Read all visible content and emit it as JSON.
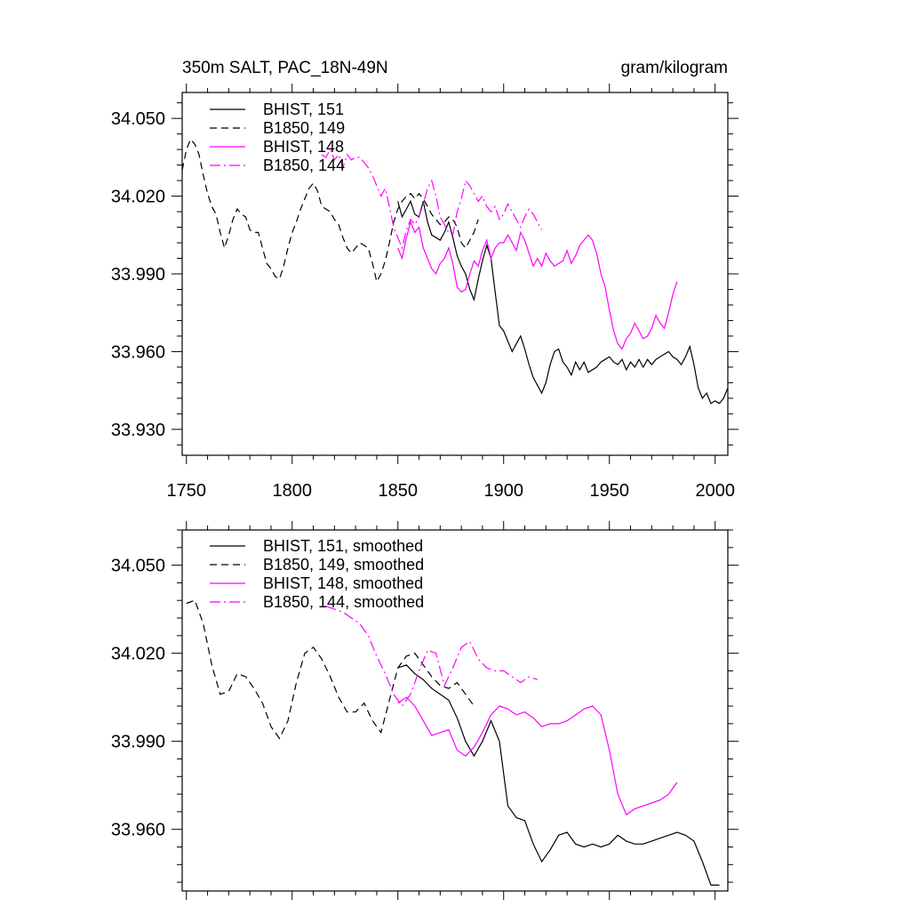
{
  "chart_data": [
    {
      "type": "line",
      "title_left": "350m SALT, PAC_18N-49N",
      "title_right": "gram/kilogram",
      "xlim": [
        1748,
        2006
      ],
      "ylim": [
        33.92,
        34.06
      ],
      "x_ticks": [
        1750,
        1800,
        1850,
        1900,
        1950,
        2000
      ],
      "x_tick_labels": [
        "1750",
        "1800",
        "1850",
        "1900",
        "1950",
        "2000"
      ],
      "y_ticks": [
        33.93,
        33.96,
        33.99,
        34.02,
        34.05
      ],
      "y_tick_labels": [
        "33.930",
        "33.960",
        "33.990",
        "34.020",
        "34.050"
      ],
      "series": [
        {
          "name": "BHIST, 151",
          "color": "#000000",
          "dash": "solid",
          "x": [
            1850,
            1852,
            1854,
            1856,
            1858,
            1860,
            1862,
            1864,
            1866,
            1868,
            1870,
            1872,
            1874,
            1876,
            1878,
            1880,
            1882,
            1884,
            1886,
            1888,
            1890,
            1892,
            1894,
            1896,
            1898,
            1900,
            1902,
            1904,
            1906,
            1908,
            1910,
            1912,
            1914,
            1916,
            1918,
            1920,
            1922,
            1924,
            1926,
            1928,
            1930,
            1932,
            1934,
            1936,
            1938,
            1940,
            1942,
            1944,
            1946,
            1948,
            1950,
            1952,
            1954,
            1956,
            1958,
            1960,
            1962,
            1964,
            1966,
            1968,
            1970,
            1972,
            1974,
            1976,
            1978,
            1980,
            1982,
            1984,
            1986,
            1988,
            1990,
            1992,
            1994,
            1996,
            1998,
            2000,
            2002,
            2004,
            2006
          ],
          "y": [
            34.018,
            34.012,
            34.015,
            34.018,
            34.013,
            34.012,
            34.018,
            34.01,
            34.005,
            34.004,
            34.003,
            34.006,
            34.01,
            34.004,
            33.997,
            33.993,
            33.99,
            33.984,
            33.98,
            33.988,
            33.995,
            34.001,
            33.996,
            33.983,
            33.97,
            33.968,
            33.964,
            33.96,
            33.963,
            33.966,
            33.961,
            33.955,
            33.95,
            33.947,
            33.944,
            33.948,
            33.955,
            33.96,
            33.961,
            33.956,
            33.954,
            33.951,
            33.956,
            33.953,
            33.956,
            33.952,
            33.953,
            33.954,
            33.956,
            33.957,
            33.958,
            33.956,
            33.955,
            33.957,
            33.953,
            33.956,
            33.954,
            33.957,
            33.954,
            33.957,
            33.955,
            33.957,
            33.958,
            33.959,
            33.96,
            33.958,
            33.957,
            33.955,
            33.958,
            33.962,
            33.955,
            33.946,
            33.942,
            33.944,
            33.94,
            33.941,
            33.94,
            33.942,
            33.946
          ]
        },
        {
          "name": "B1850, 149",
          "color": "#000000",
          "dash": "dashed",
          "x": [
            1748,
            1750,
            1752,
            1754,
            1756,
            1758,
            1760,
            1762,
            1764,
            1766,
            1768,
            1770,
            1772,
            1774,
            1776,
            1778,
            1780,
            1782,
            1784,
            1786,
            1788,
            1790,
            1792,
            1794,
            1796,
            1798,
            1800,
            1802,
            1804,
            1806,
            1808,
            1810,
            1812,
            1814,
            1816,
            1818,
            1820,
            1822,
            1824,
            1826,
            1828,
            1830,
            1832,
            1834,
            1836,
            1838,
            1840,
            1842,
            1844,
            1846,
            1848,
            1850,
            1852,
            1854,
            1856,
            1858,
            1860,
            1862,
            1864,
            1866,
            1868,
            1870,
            1872,
            1874,
            1876,
            1878,
            1880,
            1882,
            1884,
            1886,
            1888
          ],
          "y": [
            34.03,
            34.038,
            34.042,
            34.04,
            34.036,
            34.028,
            34.021,
            34.016,
            34.013,
            34.006,
            34.0,
            34.005,
            34.011,
            34.015,
            34.013,
            34.012,
            34.007,
            34.006,
            34.006,
            34.0,
            33.994,
            33.992,
            33.989,
            33.988,
            33.993,
            34.0,
            34.006,
            34.01,
            34.015,
            34.019,
            34.023,
            34.025,
            34.022,
            34.016,
            34.015,
            34.014,
            34.011,
            34.009,
            34.004,
            34.0,
            33.998,
            34.0,
            34.002,
            34.001,
            34.0,
            33.994,
            33.987,
            33.99,
            33.995,
            34.002,
            34.01,
            34.015,
            34.018,
            34.02,
            34.021,
            34.019,
            34.021,
            34.019,
            34.016,
            34.013,
            34.011,
            34.009,
            34.01,
            34.012,
            34.011,
            34.008,
            34.002,
            34.0,
            34.003,
            34.006,
            34.011
          ]
        },
        {
          "name": "BHIST, 148",
          "color": "#ff00ff",
          "dash": "solid",
          "x": [
            1850,
            1852,
            1854,
            1856,
            1858,
            1860,
            1862,
            1864,
            1866,
            1868,
            1870,
            1872,
            1874,
            1876,
            1878,
            1880,
            1882,
            1884,
            1886,
            1888,
            1890,
            1892,
            1894,
            1896,
            1898,
            1900,
            1902,
            1904,
            1906,
            1908,
            1910,
            1912,
            1914,
            1916,
            1918,
            1920,
            1922,
            1924,
            1926,
            1928,
            1930,
            1932,
            1934,
            1936,
            1938,
            1940,
            1942,
            1944,
            1946,
            1948,
            1950,
            1952,
            1954,
            1956,
            1958,
            1960,
            1962,
            1964,
            1966,
            1968,
            1970,
            1972,
            1974,
            1976,
            1978,
            1980,
            1982
          ],
          "y": [
            34.0,
            33.996,
            34.004,
            34.01,
            34.006,
            34.008,
            34.0,
            33.996,
            33.992,
            33.99,
            33.994,
            33.996,
            34.0,
            33.994,
            33.985,
            33.983,
            33.984,
            33.99,
            33.995,
            33.993,
            33.999,
            34.003,
            33.996,
            34.0,
            34.002,
            34.002,
            34.005,
            34.002,
            33.999,
            34.006,
            34.003,
            33.998,
            33.993,
            33.996,
            33.993,
            33.998,
            33.995,
            33.993,
            33.994,
            33.995,
            33.999,
            33.994,
            33.997,
            34.001,
            34.003,
            34.005,
            34.003,
            33.998,
            33.99,
            33.985,
            33.976,
            33.968,
            33.963,
            33.961,
            33.965,
            33.967,
            33.971,
            33.968,
            33.965,
            33.966,
            33.969,
            33.974,
            33.971,
            33.969,
            33.975,
            33.982,
            33.987
          ]
        },
        {
          "name": "B1850, 144",
          "color": "#ff00ff",
          "dash": "dashdot",
          "x": [
            1814,
            1816,
            1818,
            1820,
            1822,
            1824,
            1826,
            1828,
            1830,
            1832,
            1834,
            1836,
            1838,
            1840,
            1842,
            1844,
            1846,
            1848,
            1850,
            1852,
            1854,
            1856,
            1858,
            1860,
            1862,
            1864,
            1866,
            1868,
            1870,
            1872,
            1874,
            1876,
            1878,
            1880,
            1882,
            1884,
            1886,
            1888,
            1890,
            1892,
            1894,
            1896,
            1898,
            1900,
            1902,
            1904,
            1906,
            1908,
            1910,
            1912,
            1914,
            1916,
            1918
          ],
          "y": [
            34.036,
            34.035,
            34.038,
            34.034,
            34.036,
            34.031,
            34.036,
            34.034,
            34.035,
            34.035,
            34.033,
            34.031,
            34.028,
            34.024,
            34.02,
            34.023,
            34.016,
            34.008,
            34.004,
            34.0,
            34.007,
            34.011,
            34.009,
            34.012,
            34.017,
            34.023,
            34.026,
            34.02,
            34.012,
            34.009,
            34.006,
            34.005,
            34.014,
            34.019,
            34.026,
            34.024,
            34.021,
            34.018,
            34.02,
            34.016,
            34.014,
            34.016,
            34.011,
            34.013,
            34.017,
            34.014,
            34.011,
            34.008,
            34.012,
            34.015,
            34.013,
            34.01,
            34.007
          ]
        }
      ]
    },
    {
      "type": "line",
      "xlim": [
        1748,
        2006
      ],
      "ylim": [
        33.939,
        34.062
      ],
      "x_ticks": [
        1750,
        1800,
        1850,
        1900,
        1950,
        2000
      ],
      "y_ticks": [
        33.96,
        33.99,
        34.02,
        34.05
      ],
      "y_tick_labels": [
        "33.960",
        "33.990",
        "34.020",
        "34.050"
      ],
      "series": [
        {
          "name": "BHIST, 151, smoothed",
          "color": "#000000",
          "dash": "solid",
          "x": [
            1850,
            1854,
            1858,
            1862,
            1866,
            1870,
            1874,
            1878,
            1882,
            1886,
            1890,
            1894,
            1898,
            1902,
            1906,
            1910,
            1914,
            1918,
            1922,
            1926,
            1930,
            1934,
            1938,
            1942,
            1946,
            1950,
            1954,
            1958,
            1962,
            1966,
            1970,
            1974,
            1978,
            1982,
            1986,
            1990,
            1994,
            1998,
            2002
          ],
          "y": [
            34.015,
            34.016,
            34.013,
            34.011,
            34.008,
            34.006,
            34.004,
            33.998,
            33.99,
            33.985,
            33.99,
            33.997,
            33.99,
            33.968,
            33.964,
            33.963,
            33.955,
            33.949,
            33.953,
            33.958,
            33.959,
            33.955,
            33.954,
            33.955,
            33.954,
            33.955,
            33.958,
            33.956,
            33.955,
            33.955,
            33.956,
            33.957,
            33.958,
            33.959,
            33.958,
            33.956,
            33.949,
            33.941,
            33.941
          ]
        },
        {
          "name": "B1850, 149, smoothed",
          "color": "#000000",
          "dash": "dashed",
          "x": [
            1750,
            1754,
            1758,
            1762,
            1766,
            1770,
            1774,
            1778,
            1782,
            1786,
            1790,
            1794,
            1798,
            1802,
            1806,
            1810,
            1814,
            1818,
            1822,
            1826,
            1830,
            1834,
            1838,
            1842,
            1846,
            1850,
            1854,
            1858,
            1862,
            1866,
            1870,
            1874,
            1878,
            1882,
            1886
          ],
          "y": [
            34.037,
            34.038,
            34.03,
            34.016,
            34.006,
            34.007,
            34.013,
            34.012,
            34.008,
            34.003,
            33.995,
            33.991,
            33.997,
            34.01,
            34.02,
            34.022,
            34.018,
            34.012,
            34.005,
            34.0,
            34.0,
            34.003,
            33.997,
            33.993,
            34.004,
            34.015,
            34.019,
            34.02,
            34.016,
            34.012,
            34.009,
            34.008,
            34.01,
            34.006,
            34.002
          ]
        },
        {
          "name": "BHIST, 148, smoothed",
          "color": "#ff00ff",
          "dash": "solid",
          "x": [
            1850,
            1854,
            1858,
            1862,
            1866,
            1870,
            1874,
            1878,
            1882,
            1886,
            1890,
            1894,
            1898,
            1902,
            1906,
            1910,
            1914,
            1918,
            1922,
            1926,
            1930,
            1934,
            1938,
            1942,
            1946,
            1950,
            1954,
            1958,
            1962,
            1966,
            1970,
            1974,
            1978,
            1982
          ],
          "y": [
            34.003,
            34.005,
            34.002,
            33.997,
            33.992,
            33.993,
            33.994,
            33.987,
            33.985,
            33.988,
            33.993,
            33.999,
            34.002,
            34.001,
            33.999,
            34.0,
            33.998,
            33.995,
            33.996,
            33.996,
            33.997,
            33.999,
            34.001,
            34.002,
            33.999,
            33.987,
            33.972,
            33.965,
            33.967,
            33.968,
            33.969,
            33.97,
            33.972,
            33.976
          ]
        },
        {
          "name": "B1850, 144, smoothed",
          "color": "#ff00ff",
          "dash": "dashdot",
          "x": [
            1816,
            1820,
            1824,
            1828,
            1832,
            1836,
            1840,
            1844,
            1848,
            1852,
            1856,
            1860,
            1864,
            1868,
            1872,
            1876,
            1880,
            1884,
            1888,
            1892,
            1896,
            1900,
            1904,
            1908,
            1912,
            1916
          ],
          "y": [
            34.036,
            34.035,
            34.034,
            34.032,
            34.03,
            34.026,
            34.019,
            34.013,
            34.006,
            34.002,
            34.006,
            34.014,
            34.021,
            34.02,
            34.009,
            34.015,
            34.022,
            34.024,
            34.018,
            34.015,
            34.014,
            34.014,
            34.012,
            34.01,
            34.012,
            34.011
          ]
        }
      ]
    }
  ]
}
